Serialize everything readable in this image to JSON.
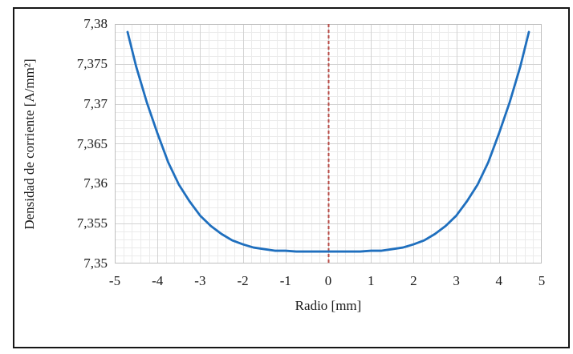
{
  "chart_data": {
    "type": "line",
    "title": "",
    "xlabel": "Radio [mm]",
    "ylabel": "Densidad de corriente [A/mm²]",
    "xlim": [
      -5,
      5
    ],
    "ylim": [
      7.35,
      7.38
    ],
    "x_ticks": [
      -5,
      -4,
      -3,
      -2,
      -1,
      0,
      1,
      2,
      3,
      4,
      5
    ],
    "x_tick_labels": [
      "-5",
      "-4",
      "-3",
      "-2",
      "-1",
      "0",
      "1",
      "2",
      "3",
      "4",
      "5"
    ],
    "y_ticks": [
      7.38,
      7.375,
      7.37,
      7.365,
      7.36,
      7.355,
      7.35
    ],
    "y_tick_labels": [
      "7,38",
      "7,375",
      "7,37",
      "7,365",
      "7,36",
      "7,355",
      "7,35"
    ],
    "x_minor_step": 0.2,
    "y_minor_step": 0.001,
    "grid": {
      "show_major": true,
      "show_minor": true,
      "major_color": "#d3d3d3",
      "minor_color": "#ebebeb",
      "border_color": "#bfbfbf"
    },
    "reference_line": {
      "x": 0,
      "color": "#b84a45",
      "style": "dashed"
    },
    "series": [
      {
        "name": "densidad_de_corriente",
        "color": "#1f6fbe",
        "line_width": 2.8,
        "points": [
          [
            -4.7,
            7.379
          ],
          [
            -4.5,
            7.3747
          ],
          [
            -4.25,
            7.3702
          ],
          [
            -4.0,
            7.3663
          ],
          [
            -3.75,
            7.3627
          ],
          [
            -3.5,
            7.3599
          ],
          [
            -3.25,
            7.3578
          ],
          [
            -3.0,
            7.356
          ],
          [
            -2.75,
            7.3547
          ],
          [
            -2.5,
            7.3537
          ],
          [
            -2.25,
            7.3529
          ],
          [
            -2.0,
            7.3524
          ],
          [
            -1.75,
            7.352
          ],
          [
            -1.5,
            7.3518
          ],
          [
            -1.25,
            7.3516
          ],
          [
            -1.0,
            7.3516
          ],
          [
            -0.75,
            7.3515
          ],
          [
            -0.5,
            7.3515
          ],
          [
            -0.25,
            7.3515
          ],
          [
            0.0,
            7.3515
          ],
          [
            0.25,
            7.3515
          ],
          [
            0.5,
            7.3515
          ],
          [
            0.75,
            7.3515
          ],
          [
            1.0,
            7.3516
          ],
          [
            1.25,
            7.3516
          ],
          [
            1.5,
            7.3518
          ],
          [
            1.75,
            7.352
          ],
          [
            2.0,
            7.3524
          ],
          [
            2.25,
            7.3529
          ],
          [
            2.5,
            7.3537
          ],
          [
            2.75,
            7.3547
          ],
          [
            3.0,
            7.356
          ],
          [
            3.25,
            7.3578
          ],
          [
            3.5,
            7.3599
          ],
          [
            3.75,
            7.3627
          ],
          [
            4.0,
            7.3663
          ],
          [
            4.25,
            7.3702
          ],
          [
            4.5,
            7.3747
          ],
          [
            4.7,
            7.379
          ]
        ]
      }
    ]
  }
}
